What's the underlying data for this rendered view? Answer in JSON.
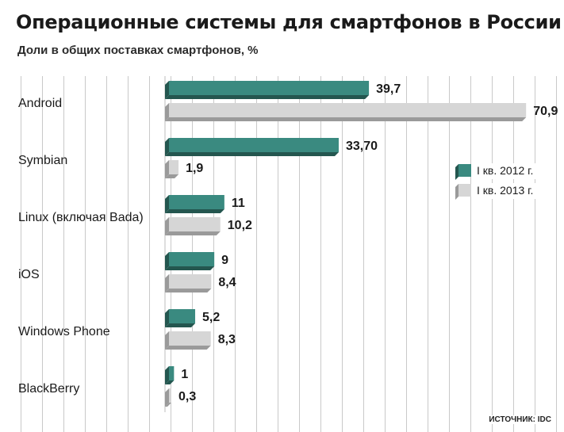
{
  "header": {
    "title": "Операционные системы для смартфонов в России",
    "subtitle": "Доли в общих поставках смартфонов, %"
  },
  "source": "ИСТОЧНИК: IDC",
  "colors": {
    "series_2012": "#3a8a80",
    "series_2012_side": "#24564f",
    "series_2013": "#d6d6d6",
    "series_2013_side": "#9a9a9a",
    "grid": "#c9c9c9"
  },
  "chart_data": {
    "type": "bar",
    "orientation": "horizontal",
    "categories": [
      "Android",
      "Symbian",
      "Linux (включая Bada)",
      "iOS",
      "Windows Phone",
      "BlackBerry"
    ],
    "series": [
      {
        "name": "I кв. 2012 г.",
        "values": [
          39.7,
          33.7,
          11,
          9,
          5.2,
          1
        ],
        "labels": [
          "39,7",
          "33,70",
          "11",
          "9",
          "5,2",
          "1"
        ]
      },
      {
        "name": "I кв. 2013 г.",
        "values": [
          70.9,
          1.9,
          10.2,
          8.4,
          8.3,
          0.3
        ],
        "labels": [
          "70,9",
          "1,9",
          "10,2",
          "8,4",
          "8,3",
          "0,3"
        ]
      }
    ],
    "title": "Операционные системы для смартфонов в России",
    "subtitle": "Доли в общих поставках смартфонов, %",
    "xlim": [
      0,
      80
    ],
    "grid": true,
    "legend_position": "right"
  }
}
